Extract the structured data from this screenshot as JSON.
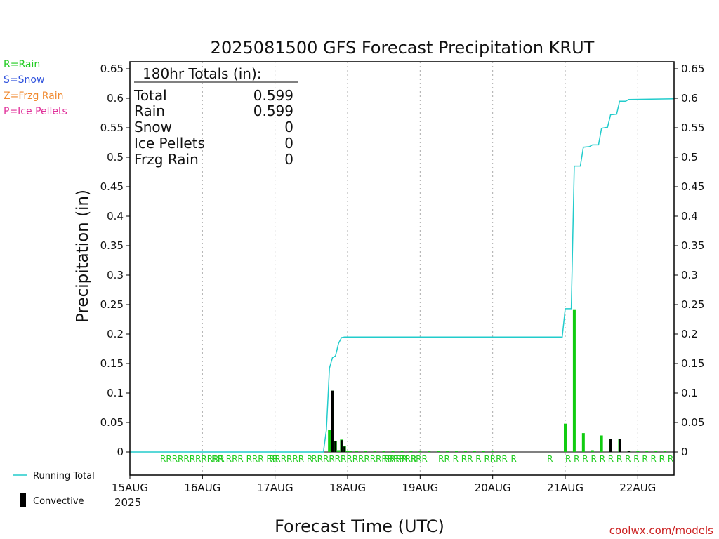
{
  "title": "2025081500 GFS Forecast Precipitation KRUT",
  "watermark": "coolwx.com/models",
  "legend_types": [
    {
      "text": "R=Rain",
      "color": "#22cc22"
    },
    {
      "text": "S=Snow",
      "color": "#3355dd"
    },
    {
      "text": "Z=Frzg Rain",
      "color": "#f08a30"
    },
    {
      "text": "P=Ice Pellets",
      "color": "#e0309a"
    }
  ],
  "legend_series": {
    "running_total": "Running Total",
    "convective": "Convective"
  },
  "totals": {
    "header": "180hr Totals (in):",
    "rows": [
      {
        "label": "Total",
        "value": "0.599"
      },
      {
        "label": "Rain",
        "value": "0.599"
      },
      {
        "label": "Snow",
        "value": "0"
      },
      {
        "label": "Ice Pellets",
        "value": "0"
      },
      {
        "label": "Frzg Rain",
        "value": "0"
      }
    ]
  },
  "colors": {
    "running_total": "#22cccc",
    "rain": "#11cc11",
    "convective": "#000000",
    "watermark": "#cc2222",
    "grid": "#aaaaaa"
  },
  "chart_data": {
    "type": "bar",
    "xlabel": "Forecast Time (UTC)",
    "ylabel": "Precipitation (in)",
    "year_label": "2025",
    "x_unit": "hours from 2025-08-15 00 UTC",
    "xlim": [
      0,
      180
    ],
    "ylim": [
      0,
      0.65
    ],
    "yticks": [
      0,
      0.05,
      0.1,
      0.15,
      0.2,
      0.25,
      0.3,
      0.35,
      0.4,
      0.45,
      0.5,
      0.55,
      0.6,
      0.65
    ],
    "ytick_labels": [
      "0",
      "0.05",
      "0.1",
      "0.15",
      "0.2",
      "0.25",
      "0.3",
      "0.35",
      "0.4",
      "0.45",
      "0.5",
      "0.55",
      "0.6",
      "0.65"
    ],
    "xticks": [
      {
        "x": 0,
        "label": "15AUG"
      },
      {
        "x": 24,
        "label": "16AUG"
      },
      {
        "x": 48,
        "label": "17AUG"
      },
      {
        "x": 72,
        "label": "18AUG"
      },
      {
        "x": 96,
        "label": "19AUG"
      },
      {
        "x": 120,
        "label": "20AUG"
      },
      {
        "x": 144,
        "label": "21AUG"
      },
      {
        "x": 168,
        "label": "22AUG"
      }
    ],
    "precip_bars": [
      [
        66,
        0.038
      ],
      [
        67,
        0.104
      ],
      [
        68,
        0.018
      ],
      [
        69,
        0.003
      ],
      [
        70,
        0.021
      ],
      [
        71,
        0.01
      ],
      [
        72,
        0.002
      ],
      [
        73,
        0.001
      ],
      [
        75,
        0.001
      ],
      [
        78,
        0.001
      ],
      [
        81,
        0.001
      ],
      [
        84,
        0.001
      ],
      [
        87,
        0.001
      ],
      [
        90,
        0.001
      ],
      [
        93,
        0.001
      ],
      [
        96,
        0.001
      ],
      [
        99,
        0.001
      ],
      [
        102,
        0.001
      ],
      [
        105,
        0.001
      ],
      [
        108,
        0.001
      ],
      [
        111,
        0.001
      ],
      [
        114,
        0.001
      ],
      [
        117,
        0.001
      ],
      [
        120,
        0.001
      ],
      [
        144,
        0.048
      ],
      [
        147,
        0.242
      ],
      [
        150,
        0.032
      ],
      [
        153,
        0.003
      ],
      [
        156,
        0.028
      ],
      [
        159,
        0.022
      ],
      [
        162,
        0.022
      ],
      [
        165,
        0.002
      ],
      [
        168,
        0.001
      ],
      [
        171,
        0.001
      ],
      [
        174,
        0.001
      ],
      [
        177,
        0.001
      ]
    ],
    "convective_bars": [
      [
        67,
        0.104
      ],
      [
        68,
        0.018
      ],
      [
        70,
        0.02
      ],
      [
        71,
        0.009
      ],
      [
        159,
        0.022
      ],
      [
        162,
        0.022
      ],
      [
        165,
        0.002
      ]
    ],
    "running_total": [
      [
        0,
        0
      ],
      [
        64,
        0
      ],
      [
        65,
        0.038
      ],
      [
        66,
        0.142
      ],
      [
        67,
        0.16
      ],
      [
        68,
        0.163
      ],
      [
        69,
        0.184
      ],
      [
        70,
        0.194
      ],
      [
        71,
        0.195
      ],
      [
        143,
        0.195
      ],
      [
        144,
        0.243
      ],
      [
        146,
        0.243
      ],
      [
        147,
        0.485
      ],
      [
        149,
        0.485
      ],
      [
        150,
        0.517
      ],
      [
        152,
        0.518
      ],
      [
        153,
        0.521
      ],
      [
        155,
        0.521
      ],
      [
        156,
        0.549
      ],
      [
        158,
        0.551
      ],
      [
        159,
        0.572
      ],
      [
        161,
        0.573
      ],
      [
        162,
        0.595
      ],
      [
        164,
        0.595
      ],
      [
        165,
        0.598
      ],
      [
        180,
        0.599
      ]
    ],
    "ptype_markers": [
      {
        "x": 10,
        "label": "RRRRRRRRRRR"
      },
      {
        "x": 27,
        "label": "RR RRR RRR RR"
      },
      {
        "x": 46,
        "label": "RRRRRR R"
      },
      {
        "x": 60,
        "label": "RRRRRRRRRRRRRRRRRR"
      },
      {
        "x": 84,
        "label": "RRRR RRR"
      },
      {
        "x": 102,
        "label": "RR R RR R RRRR"
      },
      {
        "x": 126,
        "label": "R"
      },
      {
        "x": 138,
        "label": "R"
      },
      {
        "x": 144,
        "label": "R R R R R R R R R R R R R"
      }
    ]
  }
}
